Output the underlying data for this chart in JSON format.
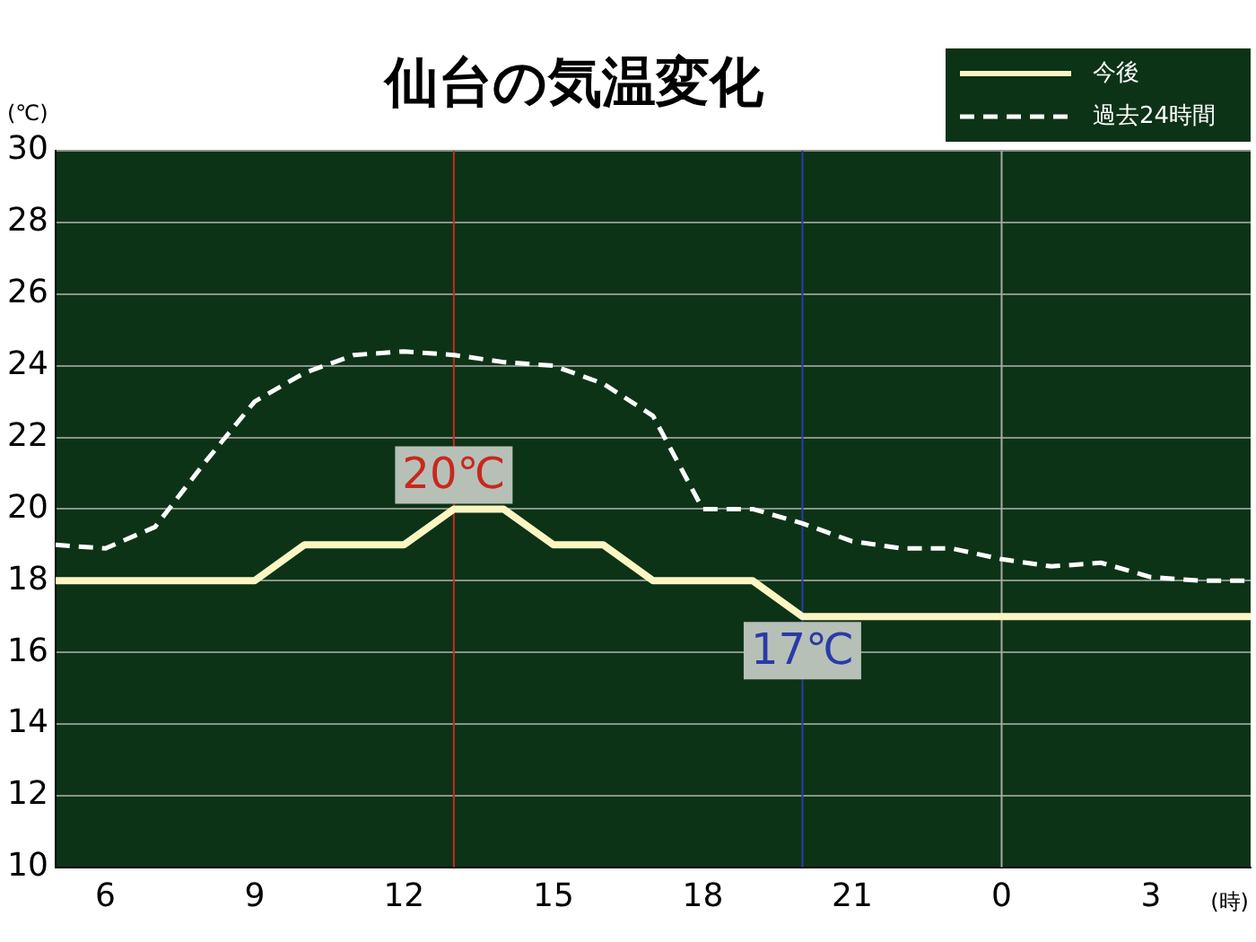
{
  "chart_data": {
    "type": "line",
    "title": "仙台の気温変化",
    "ylabel": "(℃)",
    "xlabel": "(時)",
    "x": [
      "--01-01T05:00",
      "--01-01T06:00",
      "--01-01T07:00",
      "--01-01T08:00",
      "--01-01T09:00",
      "--01-01T10:00",
      "--01-01T11:00",
      "--01-01T12:00",
      "--01-01T13:00",
      "--01-01T14:00",
      "--01-01T15:00",
      "--01-01T16:00",
      "--01-01T17:00",
      "--01-01T18:00",
      "--01-01T19:00",
      "--01-01T20:00",
      "--01-01T21:00",
      "--01-01T22:00",
      "--01-01T23:00",
      "--01-02T00:00",
      "--01-02T01:00",
      "--01-02T02:00",
      "--01-02T03:00",
      "--01-02T04:00",
      "--01-02T05:00"
    ],
    "series": [
      {
        "name": "今後",
        "color": "#fdf6c3",
        "line_style": "solid",
        "values": [
          18,
          18,
          18,
          18,
          18,
          19,
          19,
          19,
          20,
          20,
          19,
          19,
          18,
          18,
          18,
          17,
          17,
          17,
          17,
          17,
          17,
          17,
          17,
          17,
          17
        ]
      },
      {
        "name": "過去24時間",
        "color": "#ffffff",
        "line_style": "dashed",
        "values": [
          19.0,
          18.9,
          19.5,
          21.3,
          23.0,
          23.8,
          24.3,
          24.4,
          24.3,
          24.1,
          24.0,
          23.5,
          22.6,
          20.0,
          20.0,
          19.6,
          19.1,
          18.9,
          18.9,
          18.6,
          18.4,
          18.5,
          18.1,
          18.0,
          18.0
        ]
      }
    ],
    "xlim": [
      "--01-01T05:00",
      "--01-02T05:00"
    ],
    "xticks": [
      {
        "value": "--01-01T06:00",
        "label": "6"
      },
      {
        "value": "--01-01T09:00",
        "label": "9"
      },
      {
        "value": "--01-01T12:00",
        "label": "12"
      },
      {
        "value": "--01-01T15:00",
        "label": "15"
      },
      {
        "value": "--01-01T18:00",
        "label": "18"
      },
      {
        "value": "--01-01T21:00",
        "label": "21"
      },
      {
        "value": "--01-02T00:00",
        "label": "0"
      },
      {
        "value": "--01-02T03:00",
        "label": "3"
      }
    ],
    "ylim": [
      10,
      30
    ],
    "yticks": [
      10,
      12,
      14,
      16,
      18,
      20,
      22,
      24,
      26,
      28,
      30
    ],
    "grid": "y",
    "legend": "top right",
    "marker": "none",
    "ref_lines": [
      {
        "axis": "x",
        "value": "--01-01T13:00",
        "color": "#c8281e"
      },
      {
        "axis": "x",
        "value": "--01-01T20:00",
        "color": "#2a3aa8"
      },
      {
        "axis": "x",
        "value": "--01-02T00:00",
        "color": "#a8a8a8"
      }
    ],
    "annotations": [
      {
        "text": "20℃",
        "x": "--01-01T13:00",
        "y": 20
      },
      {
        "text": "17℃",
        "x": "--01-01T20:00",
        "y": 17
      }
    ]
  }
}
